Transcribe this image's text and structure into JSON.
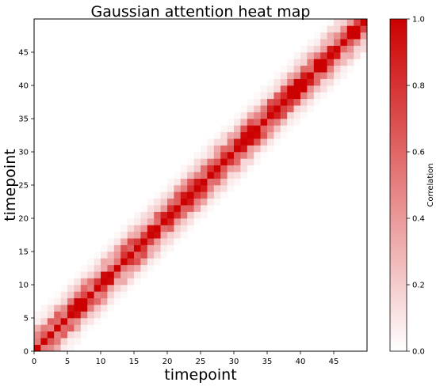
{
  "chart_data": {
    "type": "heatmap",
    "title": "Gaussian attention heat map",
    "xlabel": "timepoint",
    "ylabel": "timepoint",
    "n": 50,
    "x_ticks": [
      0,
      5,
      10,
      15,
      20,
      25,
      30,
      35,
      40,
      45
    ],
    "y_ticks": [
      0,
      5,
      10,
      15,
      20,
      25,
      30,
      35,
      40,
      45
    ],
    "colorbar": {
      "label": "Correlation",
      "range": [
        0.0,
        1.0
      ],
      "ticks": [
        "0.0",
        "0.2",
        "0.4",
        "0.6",
        "0.8",
        "1.0"
      ],
      "color_low": "#ffffff",
      "color_high": "#cc0000"
    },
    "values_description": "diagonal cells = 1.0; off-diagonal values decay with distance from the diagonal (roughly 0.7-0.85 at distance 1, 0.4-0.6 at distance 2, 0.1-0.3 at distance 3-4, near 0 beyond)",
    "diagonal_value": 1.0,
    "band_profile": [
      1.0,
      0.78,
      0.5,
      0.25,
      0.1,
      0.03
    ]
  }
}
